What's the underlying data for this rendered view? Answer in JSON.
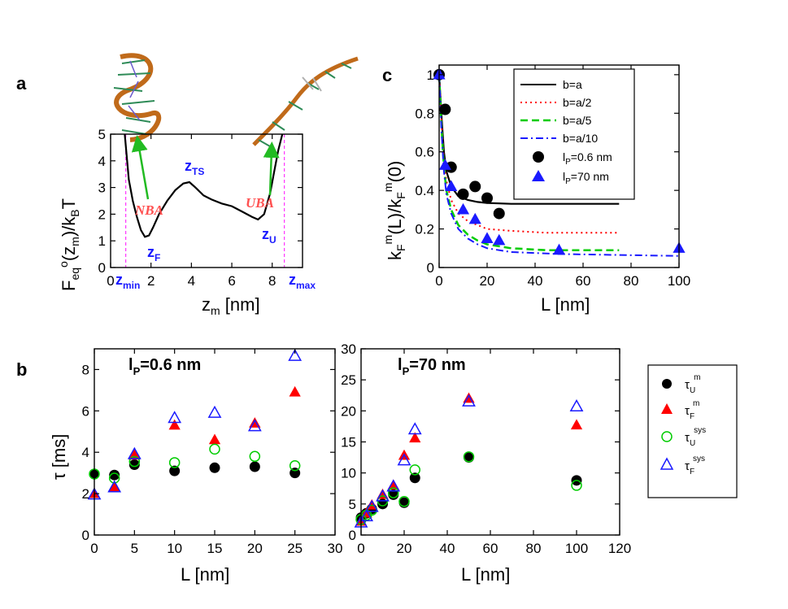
{
  "panel_labels": {
    "a": "a",
    "b": "b",
    "c": "c"
  },
  "panel_a": {
    "ylabel": "F_eq°(z_m)/k_BT",
    "ylabel_parts": {
      "main": "F",
      "sub1": "eq",
      "sup": "o",
      "mid": "(z",
      "sub2": "m",
      "end": ")/k",
      "sub3": "B",
      "tail": "T"
    },
    "xlabel_parts": {
      "main": "z",
      "sub": "m",
      "unit": " [nm]"
    },
    "xticks": [
      "0",
      "2",
      "4",
      "6",
      "8"
    ],
    "yticks": [
      "0",
      "1",
      "2",
      "3",
      "4",
      "5"
    ],
    "annotations": {
      "zmin": {
        "main": "z",
        "sub": "min"
      },
      "zmax": {
        "main": "z",
        "sub": "max"
      },
      "zTS": {
        "main": "z",
        "sub": "TS"
      },
      "zF": {
        "main": "z",
        "sub": "F"
      },
      "zU": {
        "main": "z",
        "sub": "U"
      },
      "nba": "NBA",
      "uba": "UBA"
    }
  },
  "panel_b_left": {
    "title": "l_P=0.6 nm",
    "title_parts": {
      "main": "l",
      "sub": "P",
      "rest": "=0.6 nm"
    },
    "ylabel": "τ [ms]",
    "xlabel": "L [nm]",
    "xticks": [
      "0",
      "5",
      "10",
      "15",
      "20",
      "25",
      "30"
    ],
    "yticks": [
      "0",
      "2",
      "4",
      "6",
      "8"
    ]
  },
  "panel_b_right": {
    "title": "l_P=70 nm",
    "title_parts": {
      "main": "l",
      "sub": "P",
      "rest": "=70 nm"
    },
    "xlabel": "L [nm]",
    "xticks": [
      "0",
      "20",
      "40",
      "60",
      "80",
      "100",
      "120"
    ],
    "yticks": [
      "0",
      "5",
      "10",
      "15",
      "20",
      "25",
      "30"
    ]
  },
  "panel_b_legend": [
    {
      "main": "τ",
      "sub": "U",
      "sup": "m"
    },
    {
      "main": "τ",
      "sub": "F",
      "sup": "m"
    },
    {
      "main": "τ",
      "sub": "U",
      "sup": "sys"
    },
    {
      "main": "τ",
      "sub": "F",
      "sup": "sys"
    }
  ],
  "panel_c": {
    "ylabel": "k_F^m(L)/k_F^m(0)",
    "ylabel_parts": {
      "a": "k",
      "asub": "F",
      "asup": "m",
      "b": "(L)/k",
      "bsub": "F",
      "bsup": "m",
      "c": "(0)"
    },
    "xlabel": "L [nm]",
    "xticks": [
      "0",
      "20",
      "40",
      "60",
      "80",
      "100"
    ],
    "yticks": [
      "0",
      "0.2",
      "0.4",
      "0.6",
      "0.8",
      "1"
    ],
    "legend": [
      "b=a",
      "b=a/2",
      "b=a/5",
      "b=a/10"
    ],
    "legend_markers": [
      {
        "main": "l",
        "sub": "P",
        "rest": "=0.6 nm"
      },
      {
        "main": "l",
        "sub": "P",
        "rest": "=70 nm"
      }
    ]
  },
  "colors": {
    "red": "#ff0000",
    "blue": "#1a1aff",
    "green": "#00cc00",
    "green_arrow": "#22bb22",
    "black": "#000000",
    "magenta": "#ff33ff",
    "dna": "#c06a1a"
  },
  "chart_data": [
    {
      "id": "a",
      "type": "line",
      "title": "",
      "xlabel": "z_m [nm]",
      "ylabel": "F_eq°(z_m)/k_BT",
      "xlim": [
        0,
        9.5
      ],
      "ylim": [
        0,
        5
      ],
      "x": [
        0.7,
        0.9,
        1.1,
        1.3,
        1.5,
        1.7,
        1.9,
        2.1,
        2.4,
        2.8,
        3.2,
        3.6,
        3.9,
        4.2,
        4.6,
        5.0,
        5.5,
        6.0,
        6.5,
        7.0,
        7.3,
        7.6,
        7.9,
        8.1,
        8.3,
        8.5
      ],
      "y": [
        5.0,
        3.3,
        2.5,
        1.9,
        1.4,
        1.15,
        1.2,
        1.5,
        2.0,
        2.5,
        2.9,
        3.15,
        3.2,
        3.0,
        2.7,
        2.55,
        2.4,
        2.3,
        2.1,
        1.9,
        1.8,
        2.0,
        2.8,
        3.6,
        4.4,
        5.0
      ],
      "vlines": {
        "zmin": 0.75,
        "zmax": 8.6
      }
    },
    {
      "id": "b_left",
      "type": "scatter",
      "title": "l_P=0.6 nm",
      "xlabel": "L [nm]",
      "ylabel": "τ [ms]",
      "xlim": [
        0,
        30
      ],
      "ylim": [
        0,
        9
      ],
      "x": [
        0,
        2.5,
        5,
        10,
        15,
        20,
        25
      ],
      "series": [
        {
          "name": "τ_U^m",
          "values": [
            2.95,
            2.9,
            3.4,
            3.1,
            3.25,
            3.3,
            3.0
          ]
        },
        {
          "name": "τ_F^m",
          "values": [
            2.0,
            2.3,
            3.85,
            5.3,
            4.6,
            5.4,
            6.9
          ]
        },
        {
          "name": "τ_U^sys",
          "values": [
            2.95,
            2.75,
            3.55,
            3.5,
            4.15,
            3.8,
            3.35
          ]
        },
        {
          "name": "τ_F^sys",
          "values": [
            1.95,
            2.3,
            3.9,
            5.65,
            5.9,
            5.25,
            8.65
          ]
        }
      ]
    },
    {
      "id": "b_right",
      "type": "scatter",
      "title": "l_P=70 nm",
      "xlabel": "L [nm]",
      "ylabel": "",
      "xlim": [
        0,
        120
      ],
      "ylim": [
        0,
        30
      ],
      "x": [
        0,
        2.5,
        5,
        10,
        15,
        20,
        25,
        50,
        100
      ],
      "series": [
        {
          "name": "τ_U^m",
          "values": [
            2.8,
            3.5,
            4.2,
            5.0,
            6.5,
            5.2,
            9.2,
            12.5,
            8.8
          ]
        },
        {
          "name": "τ_F^m",
          "values": [
            2.2,
            3.5,
            4.8,
            6.5,
            8.0,
            12.8,
            15.6,
            22.0,
            17.7
          ]
        },
        {
          "name": "τ_U^sys",
          "values": [
            2.5,
            3.2,
            4.0,
            5.5,
            6.8,
            5.4,
            10.5,
            12.6,
            8.0
          ]
        },
        {
          "name": "τ_F^sys",
          "values": [
            2.0,
            3.0,
            4.5,
            6.2,
            7.8,
            12.0,
            17.0,
            21.5,
            20.7
          ]
        }
      ]
    },
    {
      "id": "c",
      "type": "line",
      "title": "",
      "xlabel": "L [nm]",
      "ylabel": "k_F^m(L)/k_F^m(0)",
      "xlim": [
        0,
        100
      ],
      "ylim": [
        0,
        1.05
      ],
      "series": [
        {
          "name": "b=a",
          "x": [
            0,
            1,
            2,
            3,
            5,
            8,
            12,
            16,
            20,
            30,
            45,
            75
          ],
          "values": [
            1.0,
            0.78,
            0.6,
            0.5,
            0.42,
            0.37,
            0.35,
            0.34,
            0.335,
            0.33,
            0.33,
            0.33
          ]
        },
        {
          "name": "b=a/2",
          "x": [
            0,
            1,
            2,
            3,
            5,
            8,
            12,
            16,
            20,
            30,
            45,
            75
          ],
          "values": [
            1.0,
            0.75,
            0.55,
            0.45,
            0.35,
            0.28,
            0.24,
            0.22,
            0.2,
            0.19,
            0.18,
            0.18
          ]
        },
        {
          "name": "b=a/5",
          "x": [
            0,
            1,
            2,
            3,
            5,
            8,
            12,
            16,
            20,
            30,
            45,
            75
          ],
          "values": [
            1.0,
            0.72,
            0.52,
            0.4,
            0.3,
            0.22,
            0.17,
            0.14,
            0.12,
            0.1,
            0.09,
            0.09
          ]
        },
        {
          "name": "b=a/10",
          "x": [
            0,
            1,
            2,
            3,
            5,
            8,
            12,
            16,
            20,
            30,
            50,
            75,
            100
          ],
          "values": [
            1.0,
            0.7,
            0.5,
            0.38,
            0.28,
            0.2,
            0.15,
            0.12,
            0.1,
            0.08,
            0.07,
            0.065,
            0.06
          ]
        }
      ],
      "markers": [
        {
          "name": "l_P=0.6 nm",
          "x": [
            0,
            2.5,
            5,
            10,
            15,
            20,
            25
          ],
          "values": [
            1.0,
            0.82,
            0.52,
            0.38,
            0.42,
            0.36,
            0.28
          ]
        },
        {
          "name": "l_P=70 nm",
          "x": [
            0,
            2.5,
            5,
            10,
            15,
            20,
            25,
            50,
            100
          ],
          "values": [
            1.0,
            0.53,
            0.42,
            0.3,
            0.25,
            0.15,
            0.14,
            0.09,
            0.1
          ]
        }
      ]
    }
  ]
}
